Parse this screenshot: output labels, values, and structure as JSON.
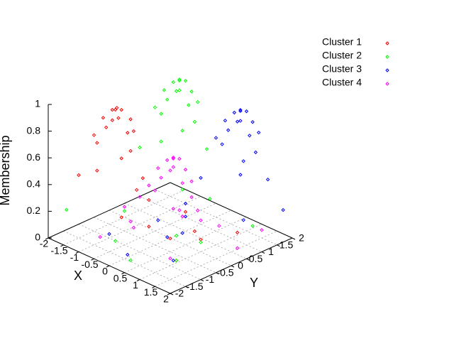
{
  "chart_data": {
    "type": "scatter3d",
    "xlabel": "X",
    "ylabel": "Y",
    "zlabel": "Membership",
    "xlim": [
      -2,
      2
    ],
    "ylim": [
      -2,
      2
    ],
    "zlim": [
      0,
      1
    ],
    "xticks": [
      -2,
      -1.5,
      -1,
      -0.5,
      0,
      0.5,
      1,
      1.5,
      2
    ],
    "yticks": [
      -2,
      -1.5,
      -1,
      -0.5,
      0,
      0.5,
      1,
      1.5,
      2
    ],
    "zticks": [
      0,
      0.2,
      0.4,
      0.6,
      0.8,
      1
    ],
    "grid": true,
    "legend": "top-right",
    "series": [
      {
        "name": "Cluster 1",
        "color": "#ff0000",
        "x": [
          -0.8,
          -0.7,
          -0.9,
          -0.6,
          -1.0,
          -0.5,
          -1.1,
          -0.8,
          -0.4,
          -1.2,
          -0.6,
          -1.3,
          -0.3,
          -1.5,
          -0.9,
          -0.2,
          -1.6,
          -1.8,
          -0.1,
          0.2,
          -1.0,
          0.5,
          0.8,
          -0.5,
          1.2,
          1.0,
          -1.9,
          0.3
        ],
        "y": [
          -0.95,
          -0.9,
          -1.0,
          -1.1,
          -0.8,
          -0.8,
          -1.1,
          -1.3,
          -1.0,
          -0.7,
          -0.6,
          -1.2,
          -1.3,
          -0.9,
          -0.4,
          -0.7,
          -1.4,
          -0.6,
          -1.5,
          -0.9,
          0.3,
          -0.5,
          0.2,
          1.0,
          -1.0,
          1.2,
          0.8,
          0.5
        ],
        "z": [
          0.99,
          0.98,
          0.97,
          0.95,
          0.94,
          0.92,
          0.9,
          0.88,
          0.85,
          0.83,
          0.8,
          0.76,
          0.7,
          0.65,
          0.6,
          0.5,
          0.45,
          0.38,
          0.3,
          0.2,
          0.15,
          0.1,
          0.05,
          0.04,
          0.06,
          0.02,
          0.08,
          0.03
        ]
      },
      {
        "name": "Cluster 2",
        "color": "#00ff00",
        "x": [
          -0.8,
          -0.7,
          -0.9,
          -0.6,
          -1.0,
          -0.5,
          -1.1,
          -0.8,
          -0.4,
          -1.2,
          -0.6,
          -1.3,
          -0.3,
          -1.5,
          -0.9,
          -0.2,
          -1.6,
          -1.8,
          -0.1,
          0.2,
          -1.0,
          0.5,
          0.9,
          -0.6,
          1.2,
          1.3,
          -1.9,
          0.3
        ],
        "y": [
          1.1,
          1.2,
          1.0,
          0.9,
          1.3,
          1.2,
          0.9,
          0.7,
          1.0,
          1.4,
          1.5,
          0.8,
          0.7,
          1.2,
          1.7,
          1.4,
          0.6,
          1.5,
          0.5,
          1.1,
          -0.5,
          -0.3,
          0.1,
          -1.2,
          -1.0,
          1.4,
          -1.5,
          -1.6
        ],
        "z": [
          0.99,
          0.98,
          0.97,
          0.95,
          0.94,
          0.92,
          0.9,
          0.88,
          0.85,
          0.83,
          0.8,
          0.76,
          0.7,
          0.65,
          0.6,
          0.5,
          0.45,
          0.38,
          0.3,
          0.2,
          0.15,
          0.1,
          0.05,
          0.04,
          0.06,
          0.08,
          0.17,
          0.03
        ]
      },
      {
        "name": "Cluster 3",
        "color": "#0000ff",
        "x": [
          1.3,
          1.4,
          1.2,
          1.5,
          1.1,
          1.6,
          1.0,
          1.3,
          1.7,
          0.9,
          1.5,
          0.8,
          1.8,
          0.6,
          1.2,
          1.9,
          0.5,
          0.7,
          2.0,
          1.9,
          0.2,
          0.4,
          -0.6,
          -1.0,
          1.2,
          -0.8,
          0.0,
          0.6
        ],
        "y": [
          1.0,
          1.1,
          0.9,
          0.8,
          1.2,
          1.1,
          0.8,
          0.6,
          0.9,
          1.3,
          1.4,
          0.7,
          0.6,
          1.1,
          1.6,
          1.3,
          0.5,
          1.6,
          0.4,
          1.8,
          0.3,
          -0.5,
          0.2,
          -1.0,
          -1.1,
          1.3,
          -1.4,
          -0.2
        ],
        "z": [
          0.99,
          0.98,
          0.97,
          0.95,
          0.94,
          0.92,
          0.9,
          0.88,
          0.85,
          0.83,
          0.8,
          0.76,
          0.7,
          0.65,
          0.6,
          0.5,
          0.45,
          0.38,
          0.3,
          0.22,
          0.15,
          0.1,
          0.05,
          0.03,
          0.07,
          0.04,
          0.02,
          0.12
        ]
      },
      {
        "name": "Cluster 4",
        "color": "#ff00ff",
        "x": [
          1.0,
          1.1,
          0.9,
          1.2,
          0.8,
          1.3,
          0.7,
          1.0,
          1.4,
          0.6,
          1.2,
          0.5,
          1.5,
          0.3,
          0.9,
          1.6,
          0.2,
          0.4,
          1.7,
          -0.2,
          0.0,
          -0.8,
          1.5,
          -1.5,
          -0.3,
          1.9,
          -1.2,
          0.7
        ],
        "y": [
          -0.9,
          -0.8,
          -1.0,
          -1.1,
          -0.7,
          -0.8,
          -1.1,
          -1.3,
          -1.0,
          -0.6,
          -0.5,
          -1.2,
          -1.4,
          -0.8,
          -0.2,
          -0.6,
          -1.5,
          -0.1,
          -1.7,
          -1.0,
          0.4,
          -1.5,
          1.5,
          0.5,
          1.2,
          0.3,
          -0.3,
          0.9
        ],
        "z": [
          0.8,
          0.79,
          0.78,
          0.77,
          0.75,
          0.73,
          0.71,
          0.69,
          0.66,
          0.63,
          0.6,
          0.57,
          0.52,
          0.47,
          0.42,
          0.36,
          0.3,
          0.26,
          0.2,
          0.16,
          0.12,
          0.08,
          0.06,
          0.1,
          0.05,
          0.09,
          0.14,
          0.07
        ]
      }
    ]
  }
}
